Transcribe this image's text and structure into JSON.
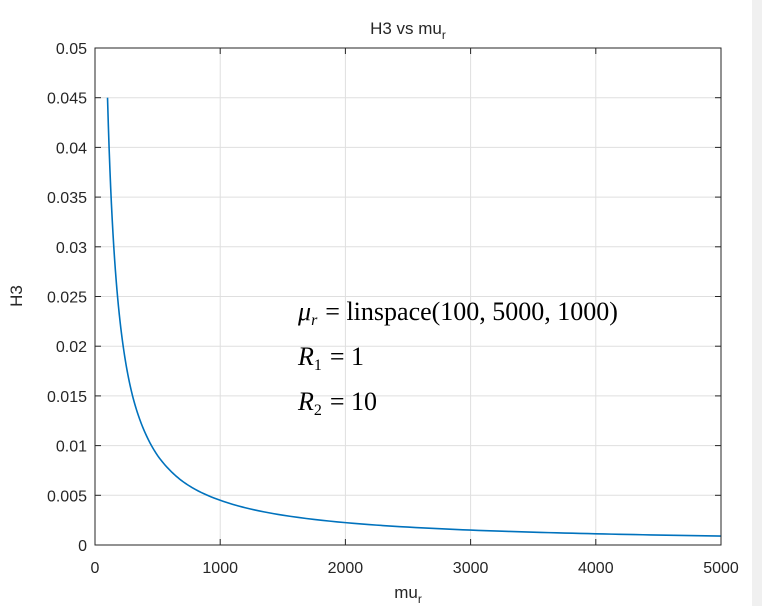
{
  "chart_data": {
    "type": "line",
    "title": "H3  vs  mu",
    "title_subscript": "r",
    "xlabel": "mu",
    "xlabel_subscript": "r",
    "ylabel": "H3",
    "xlim": [
      0,
      5000
    ],
    "ylim": [
      0,
      0.05
    ],
    "xticks": [
      "0",
      "1000",
      "2000",
      "3000",
      "4000",
      "5000"
    ],
    "yticks": [
      "0",
      "0.005",
      "0.01",
      "0.015",
      "0.02",
      "0.025",
      "0.03",
      "0.035",
      "0.04",
      "0.045",
      "0.05"
    ],
    "grid": true,
    "line_color": "#0072BD",
    "series": [
      {
        "x": [
          100,
          150,
          200,
          250,
          300,
          350,
          400,
          500,
          600,
          700,
          800,
          1000,
          1200,
          1500,
          2000,
          2500,
          3000,
          3500,
          4000,
          4500,
          5000
        ],
        "y": [
          0.045,
          0.03,
          0.0225,
          0.018,
          0.015,
          0.0129,
          0.0113,
          0.009,
          0.0075,
          0.0064,
          0.0056,
          0.0045,
          0.00375,
          0.003,
          0.00225,
          0.0018,
          0.0015,
          0.00129,
          0.00113,
          0.001,
          0.0009
        ]
      }
    ],
    "annotations": {
      "line1_mu": "μ",
      "line1_sub": "r",
      "line1_rest": "= linspace(100,  5000,  1000)",
      "line2_R": "R",
      "line2_sub": "1",
      "line2_rest": "= 1",
      "line3_R": "R",
      "line3_sub": "2",
      "line3_rest": "= 10"
    }
  }
}
